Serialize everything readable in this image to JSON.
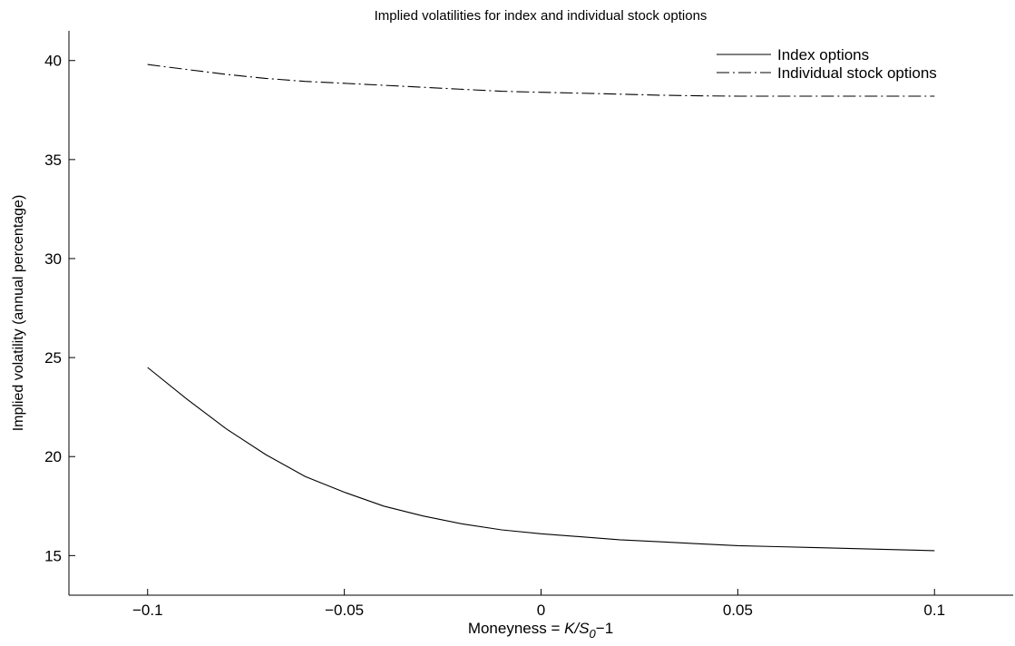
{
  "chart_data": {
    "type": "line",
    "title": "Implied volatilities for index and individual stock options",
    "xlabel": {
      "prefix": "Moneyness = ",
      "k": "K",
      "slash": "/",
      "s": "S",
      "sub": "0",
      "suffix": "−1"
    },
    "ylabel": "Implied volatility (annual percentage)",
    "xlim": [
      -0.12,
      0.12
    ],
    "ylim": [
      13,
      41.5
    ],
    "x_ticks": [
      -0.1,
      -0.05,
      0,
      0.05,
      0.1
    ],
    "x_tick_labels": [
      "−0.1",
      "−0.05",
      "0",
      "0.05",
      "0.1"
    ],
    "y_ticks": [
      15,
      20,
      25,
      30,
      35,
      40
    ],
    "y_tick_labels": [
      "15",
      "20",
      "25",
      "30",
      "35",
      "40"
    ],
    "grid": false,
    "legend_position": "top-right",
    "x": [
      -0.1,
      -0.09,
      -0.08,
      -0.07,
      -0.06,
      -0.05,
      -0.04,
      -0.03,
      -0.02,
      -0.01,
      0,
      0.01,
      0.02,
      0.03,
      0.04,
      0.05,
      0.06,
      0.07,
      0.08,
      0.09,
      0.1
    ],
    "series": [
      {
        "name": "Index options",
        "style": "solid",
        "color": "#000000",
        "values": [
          24.5,
          22.9,
          21.4,
          20.1,
          19.0,
          18.2,
          17.5,
          17.0,
          16.6,
          16.3,
          16.1,
          15.95,
          15.8,
          15.7,
          15.6,
          15.5,
          15.45,
          15.4,
          15.35,
          15.3,
          15.25
        ]
      },
      {
        "name": "Individual stock options",
        "style": "dash-dot",
        "color": "#000000",
        "values": [
          39.8,
          39.55,
          39.3,
          39.1,
          38.95,
          38.85,
          38.75,
          38.65,
          38.55,
          38.45,
          38.4,
          38.35,
          38.3,
          38.25,
          38.22,
          38.2,
          38.2,
          38.2,
          38.2,
          38.2,
          38.2
        ]
      }
    ]
  }
}
